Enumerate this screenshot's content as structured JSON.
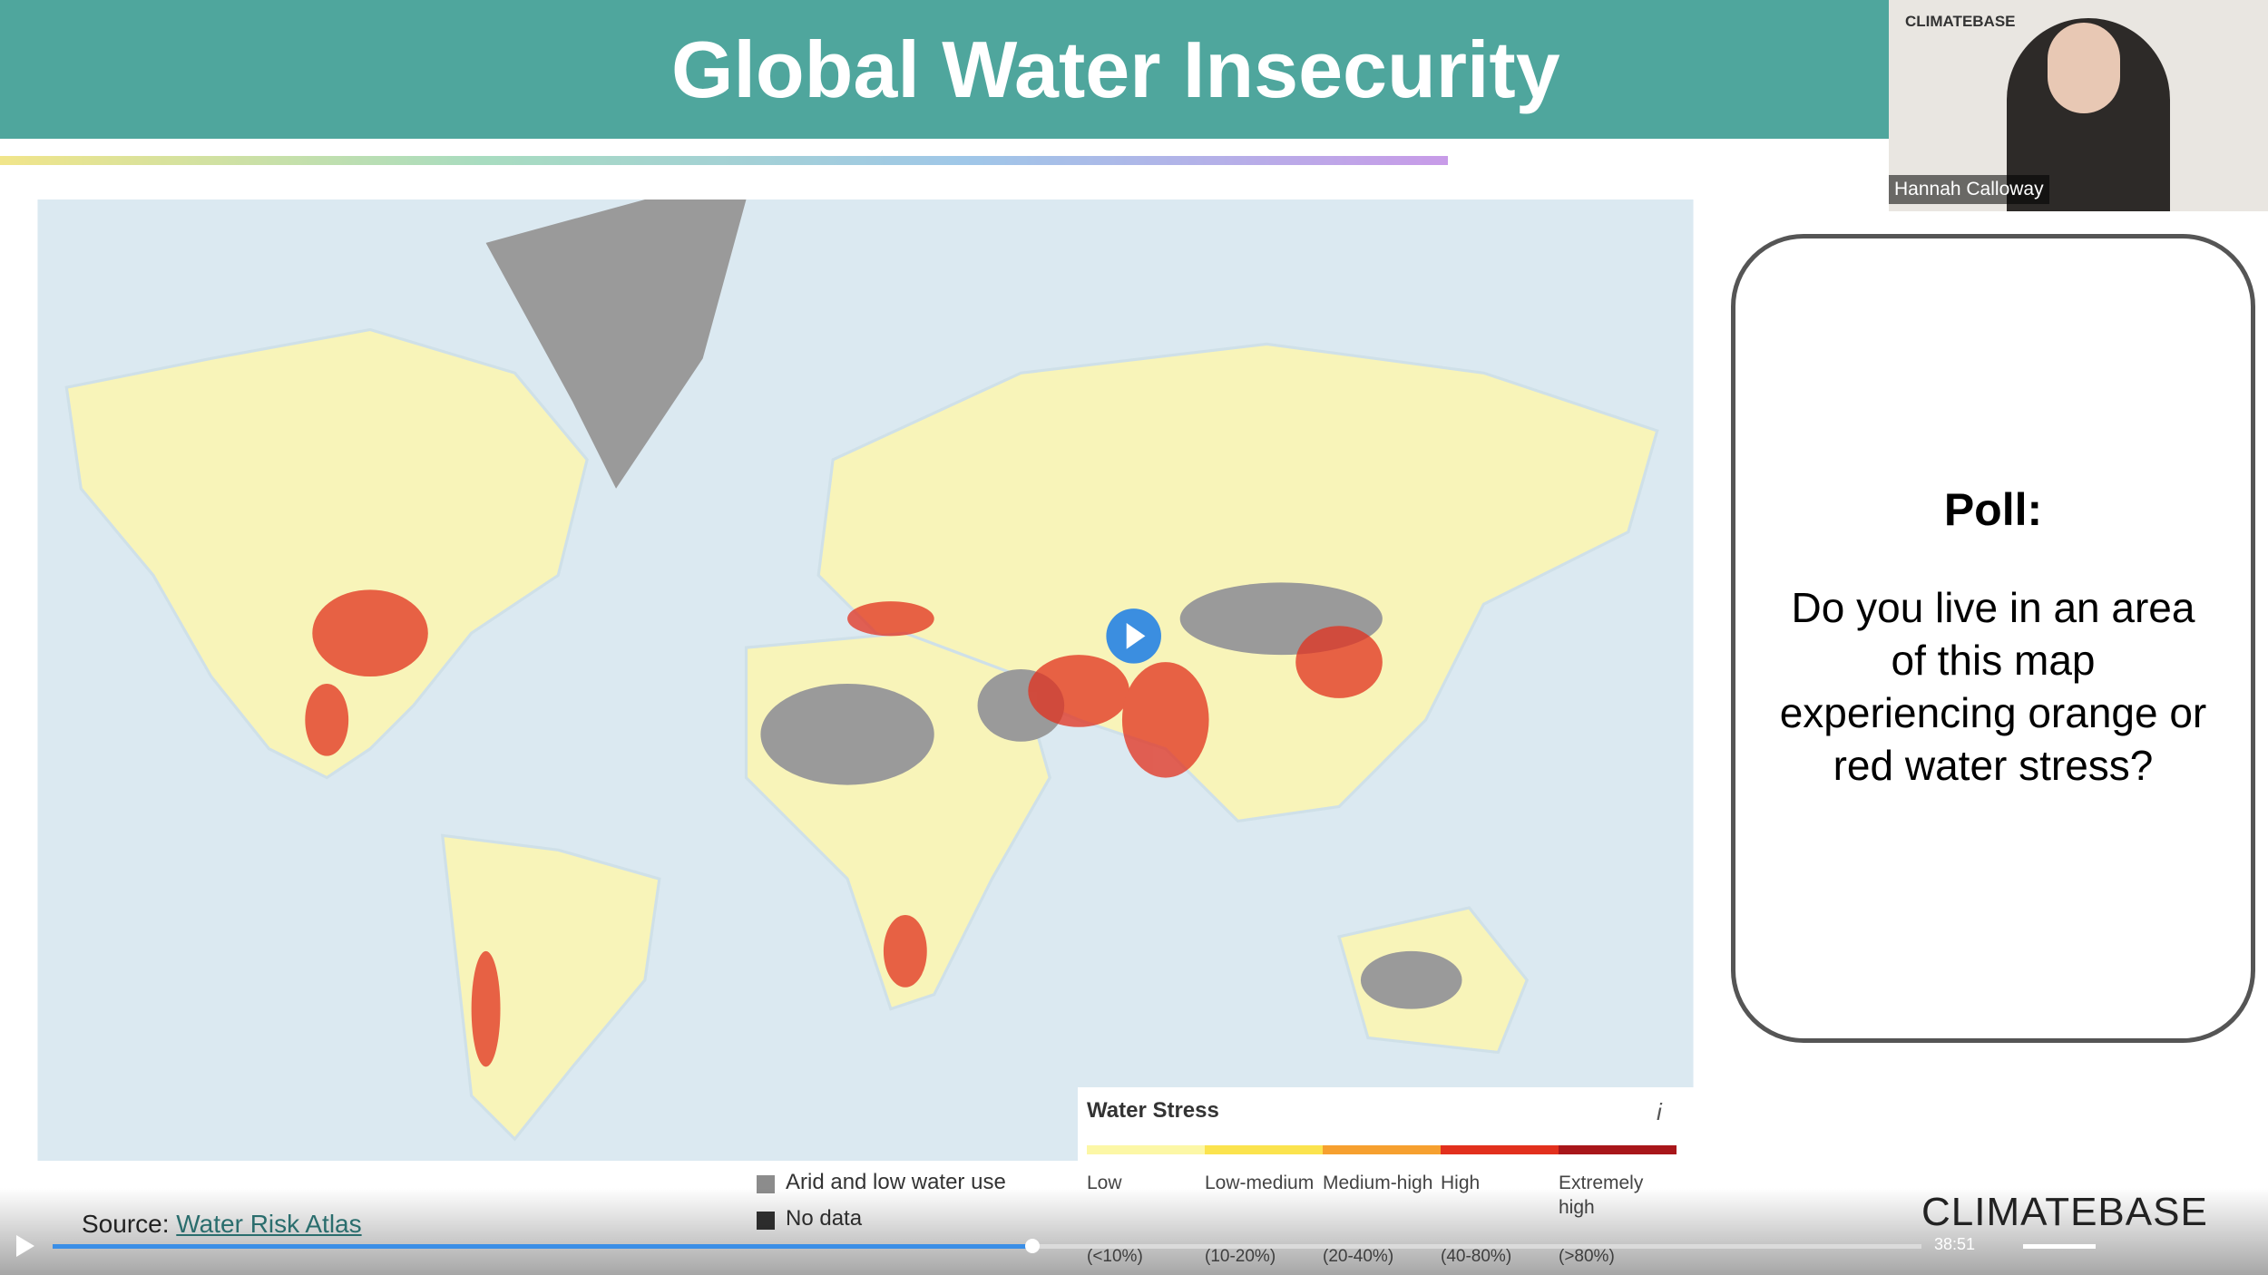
{
  "slide": {
    "title": "Global Water Insecurity",
    "source_label": "Source:",
    "source_link": "Water Risk Atlas"
  },
  "video_tile": {
    "brand": "CLIMATEBASE",
    "speaker": "Hannah Calloway"
  },
  "poll": {
    "title": "Poll:",
    "question": "Do you live in an area of this map experiencing orange or red water stress?"
  },
  "map_legend": {
    "title": "Water Stress",
    "info": "i",
    "categories": [
      {
        "label": "Low",
        "range": "(<10%)",
        "color": "#fcf7a6"
      },
      {
        "label": "Low-medium",
        "range": "(10-20%)",
        "color": "#fbe34e"
      },
      {
        "label": "Medium-high",
        "range": "(20-40%)",
        "color": "#f6a02f"
      },
      {
        "label": "High",
        "range": "(40-80%)",
        "color": "#e2301d"
      },
      {
        "label": "Extremely high",
        "range": "(>80%)",
        "color": "#a8161a"
      }
    ],
    "other": [
      {
        "label": "Arid and low water use",
        "color": "#8c8c8c"
      },
      {
        "label": "No data",
        "color": "#333333"
      }
    ]
  },
  "player": {
    "time": "38:51",
    "brand": "CLIMATEBASE"
  }
}
